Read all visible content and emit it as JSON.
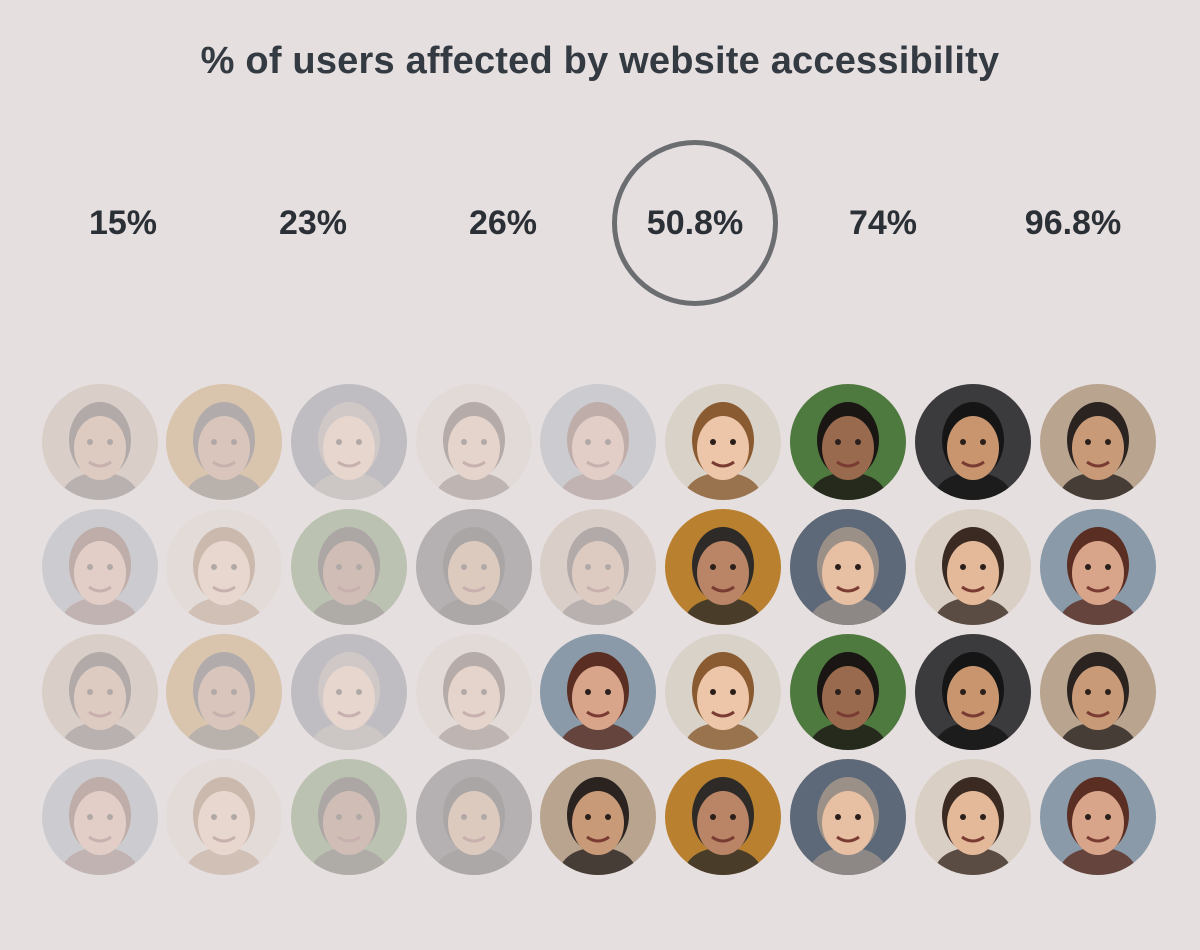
{
  "title": "% of users affected by website accessibility",
  "options": [
    {
      "label": "15%",
      "selected": false
    },
    {
      "label": "23%",
      "selected": false
    },
    {
      "label": "26%",
      "selected": false
    },
    {
      "label": "50.8%",
      "selected": true
    },
    {
      "label": "74%",
      "selected": false
    },
    {
      "label": "96.8%",
      "selected": false
    }
  ],
  "colors": {
    "ring": "#6b6d71",
    "background": "#e6dfdf",
    "text": "#343a42"
  },
  "faces": {
    "rows": [
      [
        0,
        0,
        0,
        0,
        0,
        1,
        1,
        1,
        1
      ],
      [
        0,
        0,
        0,
        0,
        0,
        1,
        1,
        1,
        1
      ],
      [
        0,
        0,
        0,
        0,
        1,
        1,
        1,
        1,
        1
      ],
      [
        0,
        0,
        0,
        0,
        1,
        1,
        1,
        1,
        1
      ]
    ],
    "palette": [
      {
        "skin": "#c99a78",
        "hair": "#2a2320",
        "bg": "#b9a48f"
      },
      {
        "skin": "#e4b99a",
        "hair": "#3a2a22",
        "bg": "#d9cfc4"
      },
      {
        "skin": "#9a6a4e",
        "hair": "#1a1614",
        "bg": "#4f7a3f"
      },
      {
        "skin": "#b98566",
        "hair": "#2d2a28",
        "bg": "#b9812f"
      },
      {
        "skin": "#d8a58a",
        "hair": "#5a2e22",
        "bg": "#8a9aa8"
      },
      {
        "skin": "#c8956e",
        "hair": "#151515",
        "bg": "#3b3a3c"
      },
      {
        "skin": "#e7bfa3",
        "hair": "#9a9088",
        "bg": "#5d6878"
      },
      {
        "skin": "#edc5a8",
        "hair": "#8a5a30",
        "bg": "#d8d2c8"
      }
    ]
  }
}
